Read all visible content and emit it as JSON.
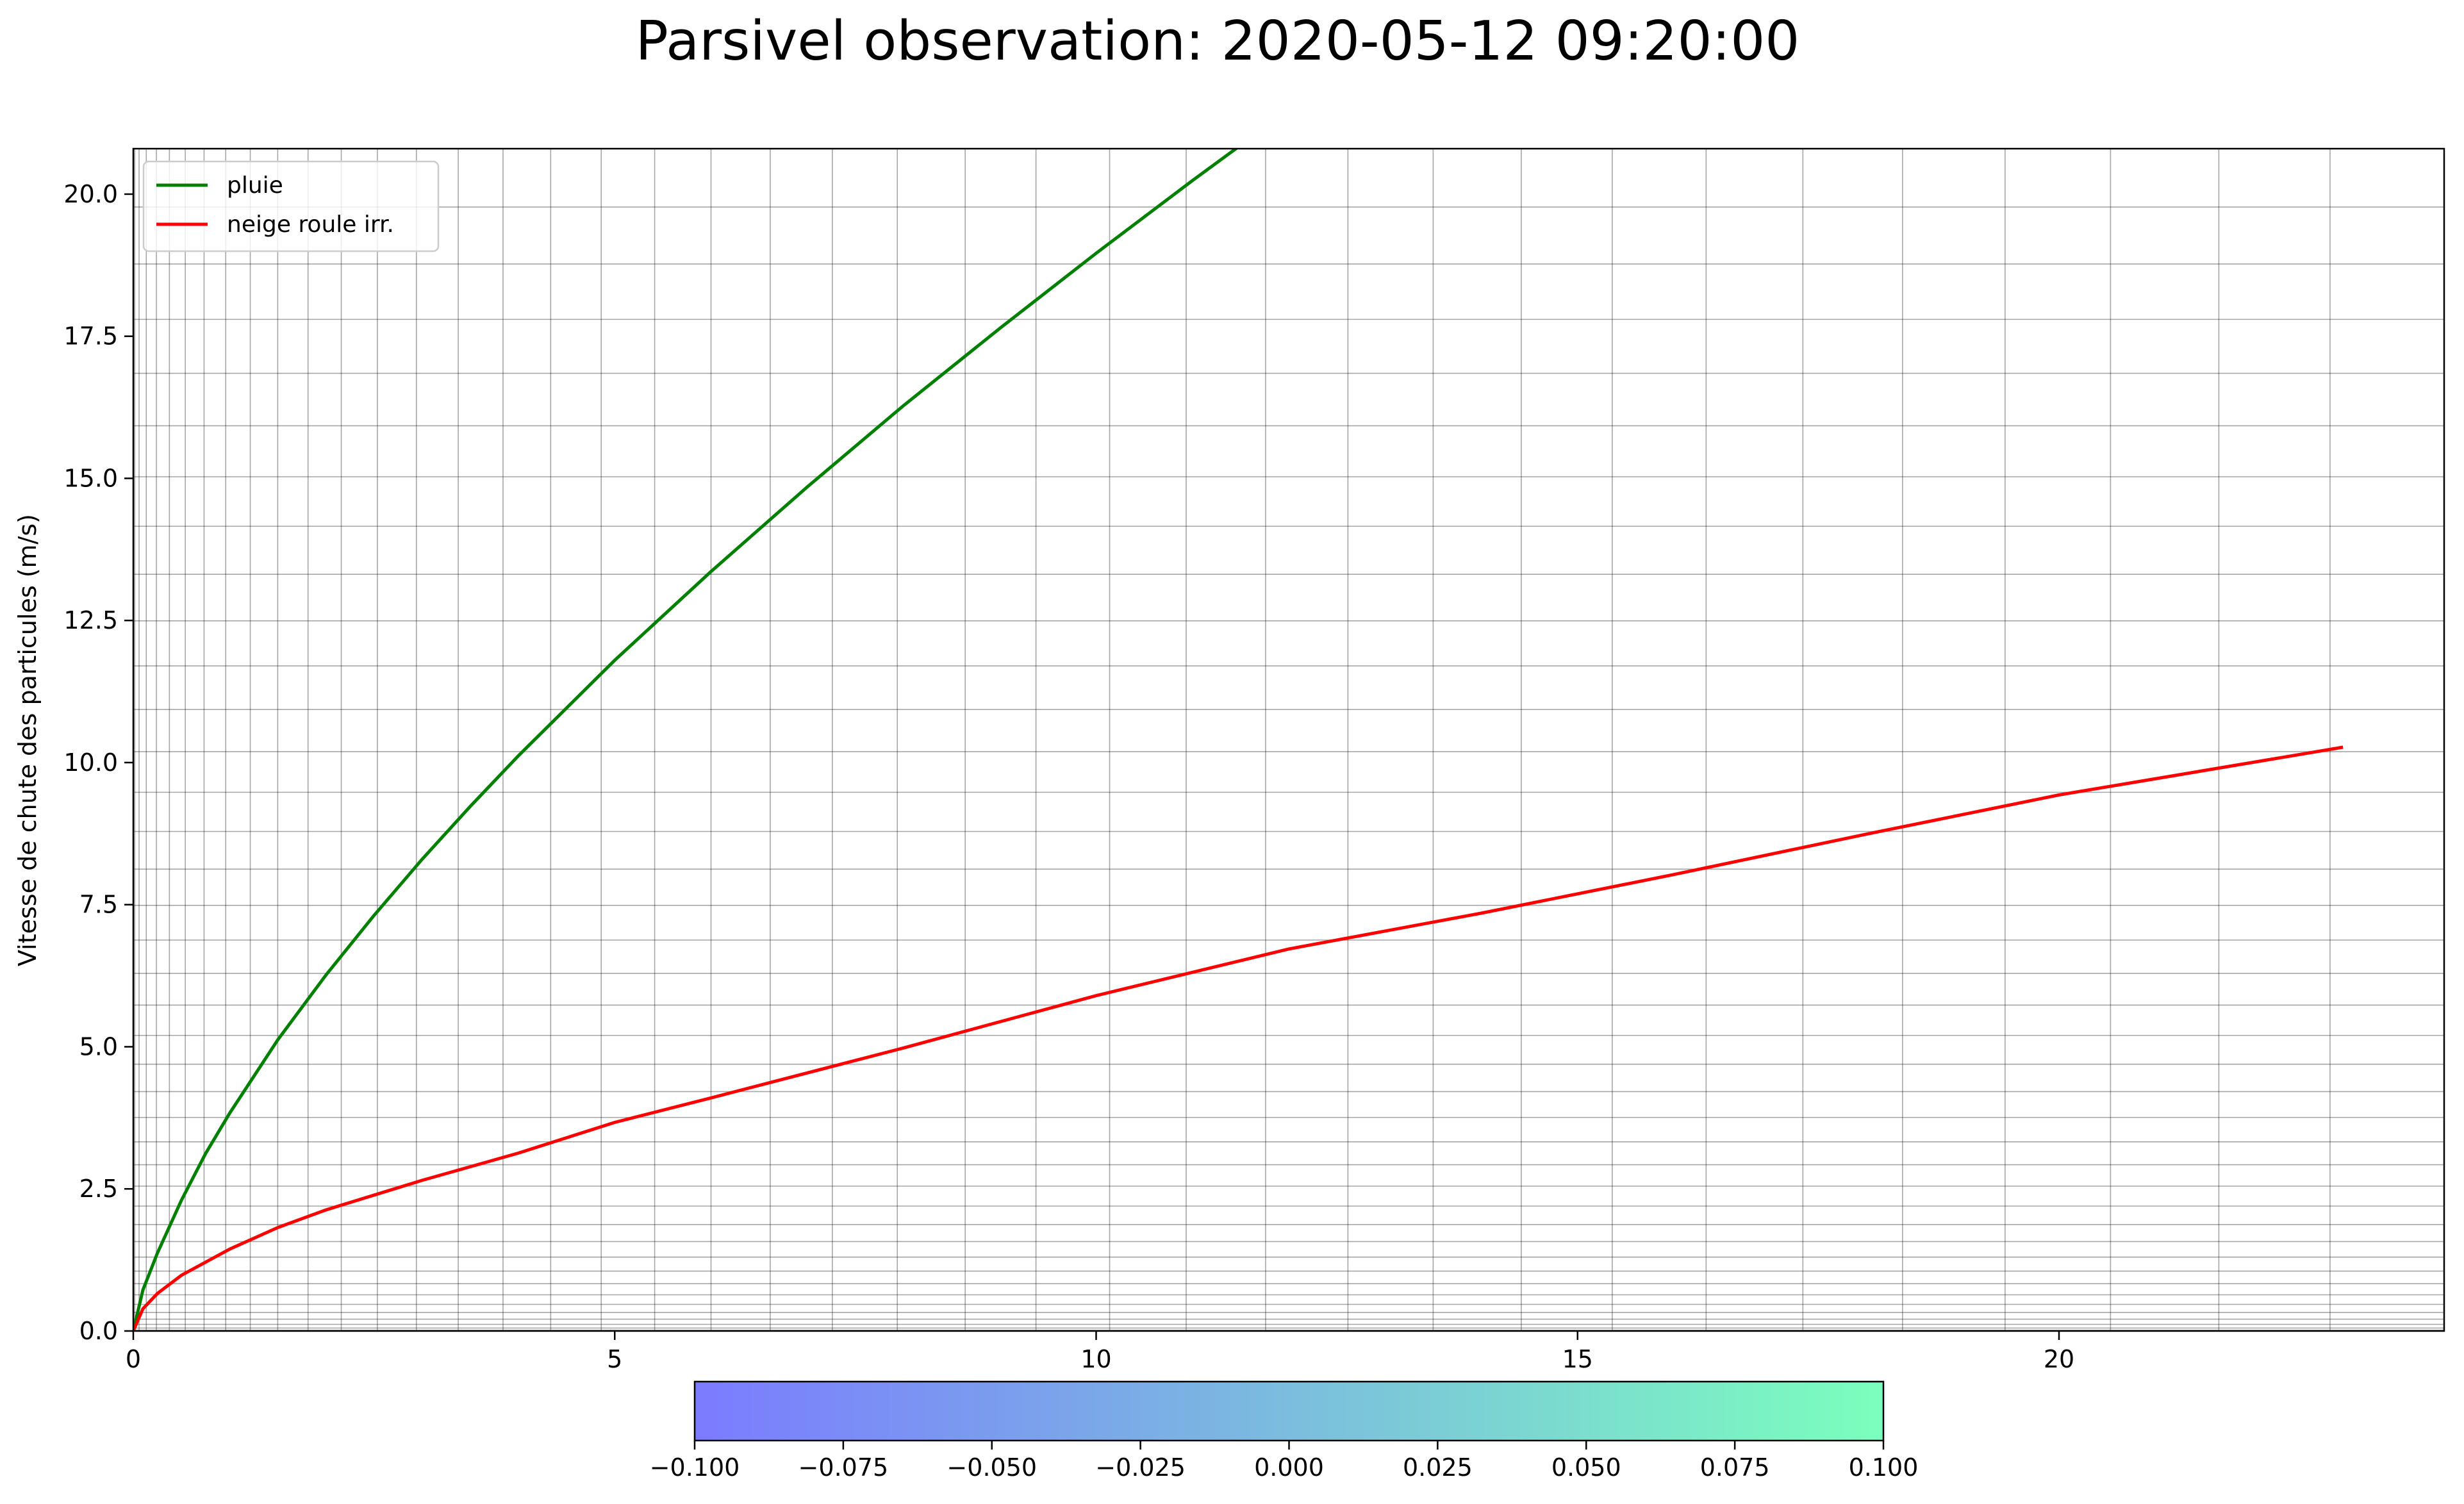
{
  "chart_data": {
    "type": "line",
    "title": "Parsivel observation: 2020-05-12 09:20:00",
    "xlabel": "",
    "ylabel": "Vitesse de chute des particules (m/s)",
    "xlim": [
      0,
      24
    ],
    "ylim": [
      0,
      20.8
    ],
    "xticks": [
      "0",
      "5",
      "10",
      "15",
      "20"
    ],
    "yticks": [
      "0.0",
      "2.5",
      "5.0",
      "7.5",
      "10.0",
      "12.5",
      "15.0",
      "17.5",
      "20.0"
    ],
    "grid": true,
    "legend_position": "top-left",
    "series": [
      {
        "name": "pluie",
        "color": "#008000",
        "x": [
          0,
          0.1,
          0.25,
          0.5,
          0.75,
          1,
          1.5,
          2,
          2.5,
          3,
          3.5,
          4,
          5,
          6,
          7,
          8,
          9,
          10,
          11,
          12,
          12.75
        ],
        "y": [
          0,
          0.72,
          1.37,
          2.3,
          3.12,
          3.83,
          5.12,
          6.26,
          7.31,
          8.3,
          9.23,
          10.12,
          11.8,
          13.36,
          14.85,
          16.28,
          17.64,
          18.96,
          20.24,
          21.48,
          22.4
        ]
      },
      {
        "name": "neige roule irr.",
        "color": "#ff0000",
        "x": [
          0,
          0.1,
          0.25,
          0.5,
          1,
          1.5,
          2,
          3,
          4,
          5,
          6,
          8,
          10,
          12,
          14,
          16,
          18,
          20,
          22,
          22.95
        ],
        "y": [
          0,
          0.39,
          0.66,
          0.98,
          1.44,
          1.82,
          2.13,
          2.65,
          3.13,
          3.67,
          4.1,
          4.98,
          5.9,
          6.72,
          7.35,
          8.03,
          8.74,
          9.43,
          10.0,
          10.27
        ]
      }
    ],
    "colorbar": {
      "min": -0.1,
      "max": 0.1,
      "color_start": "#7b7bff",
      "color_end": "#7bffbd",
      "ticks": [
        "−0.100",
        "−0.075",
        "−0.050",
        "−0.025",
        "0.000",
        "0.025",
        "0.050",
        "0.075",
        "0.100"
      ]
    }
  }
}
